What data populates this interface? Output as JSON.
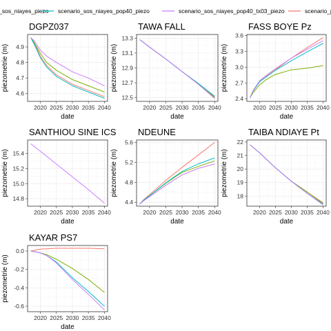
{
  "colors": {
    "scenario_piezo": "#F8766D",
    "scenario_sos_niayes_piezo": "#7CAE00",
    "scenario_sos_niayes_pop40_piezo": "#00BFC4",
    "scenario_sos_niayes_pop40_tx03_piezo": "#C77CFF"
  },
  "legend": {
    "items": [
      {
        "key": "scenario_sos_niayes_piezo",
        "label": "scenario_sos_niayes_piezo"
      },
      {
        "key": "scenario_sos_niayes_pop40_piezo",
        "label": "scenario_sos_niayes_pop40_piezo"
      },
      {
        "key": "scenario_sos_niayes_pop40_tx03_piezo",
        "label": "scenario_sos_niayes_pop40_tx03_piezo"
      },
      {
        "key": "scenario_piezo",
        "label": "scenario_piezo"
      }
    ]
  },
  "chart_data": [
    {
      "type": "line",
      "title": "DGPZ037",
      "xlabel": "date",
      "ylabel": "piezometrie (m)",
      "xlim": [
        2016,
        2041
      ],
      "ylim": [
        4.55,
        4.98
      ],
      "xticks": [
        2020,
        2025,
        2030,
        2035,
        2040
      ],
      "yticks": [
        4.6,
        4.7,
        4.8,
        4.9
      ],
      "grid": true,
      "series": [
        {
          "name": "scenario_piezo",
          "color_key": "scenario_piezo",
          "x": [
            2017,
            2018,
            2020,
            2022,
            2025,
            2030,
            2035,
            2040
          ],
          "y": [
            4.96,
            4.93,
            4.84,
            4.78,
            4.72,
            4.66,
            4.62,
            4.58
          ]
        },
        {
          "name": "scenario_sos_niayes_piezo",
          "color_key": "scenario_sos_niayes_piezo",
          "x": [
            2017,
            2018,
            2020,
            2022,
            2025,
            2030,
            2035,
            2040
          ],
          "y": [
            4.96,
            4.93,
            4.86,
            4.8,
            4.75,
            4.69,
            4.65,
            4.61
          ]
        },
        {
          "name": "scenario_sos_niayes_pop40_piezo",
          "color_key": "scenario_sos_niayes_pop40_piezo",
          "x": [
            2017,
            2018,
            2020,
            2022,
            2025,
            2030,
            2035,
            2040
          ],
          "y": [
            4.96,
            4.92,
            4.83,
            4.77,
            4.71,
            4.65,
            4.61,
            4.57
          ]
        },
        {
          "name": "scenario_sos_niayes_pop40_tx03_piezo",
          "color_key": "scenario_sos_niayes_pop40_tx03_piezo",
          "x": [
            2017,
            2018,
            2020,
            2022,
            2025,
            2030,
            2035,
            2040
          ],
          "y": [
            4.96,
            4.94,
            4.88,
            4.84,
            4.8,
            4.74,
            4.7,
            4.65
          ]
        }
      ]
    },
    {
      "type": "line",
      "title": "TAWA FALL",
      "xlabel": "date",
      "ylabel": "piezometrie (m)",
      "xlim": [
        2016,
        2041
      ],
      "ylim": [
        12.45,
        13.35
      ],
      "xticks": [
        2020,
        2025,
        2030,
        2035,
        2040
      ],
      "yticks": [
        12.5,
        12.7,
        12.9,
        13.1,
        13.3
      ],
      "grid": true,
      "series": [
        {
          "name": "scenario_piezo",
          "color_key": "scenario_piezo",
          "x": [
            2017,
            2020,
            2025,
            2030,
            2035,
            2040
          ],
          "y": [
            13.28,
            13.18,
            13.02,
            12.85,
            12.69,
            12.51
          ]
        },
        {
          "name": "scenario_sos_niayes_piezo",
          "color_key": "scenario_sos_niayes_piezo",
          "x": [
            2017,
            2020,
            2025,
            2030,
            2035,
            2040
          ],
          "y": [
            13.28,
            13.18,
            13.02,
            12.85,
            12.68,
            12.5
          ]
        },
        {
          "name": "scenario_sos_niayes_pop40_piezo",
          "color_key": "scenario_sos_niayes_pop40_piezo",
          "x": [
            2017,
            2020,
            2025,
            2030,
            2035,
            2040
          ],
          "y": [
            13.28,
            13.18,
            13.02,
            12.85,
            12.69,
            12.52
          ]
        },
        {
          "name": "scenario_sos_niayes_pop40_tx03_piezo",
          "color_key": "scenario_sos_niayes_pop40_tx03_piezo",
          "x": [
            2017,
            2020,
            2025,
            2030,
            2035,
            2040
          ],
          "y": [
            13.28,
            13.18,
            13.02,
            12.85,
            12.68,
            12.49
          ]
        }
      ]
    },
    {
      "type": "line",
      "title": "FASS BOYE Pz",
      "xlabel": "date",
      "ylabel": "piezometrie (m)",
      "xlim": [
        2016,
        2041
      ],
      "ylim": [
        2.35,
        3.62
      ],
      "xticks": [
        2020,
        2025,
        2030,
        2035,
        2040
      ],
      "yticks": [
        2.4,
        2.7,
        3.0,
        3.3,
        3.6
      ],
      "grid": true,
      "series": [
        {
          "name": "scenario_piezo",
          "color_key": "scenario_piezo",
          "x": [
            2017,
            2018,
            2020,
            2022,
            2025,
            2030,
            2035,
            2040
          ],
          "y": [
            2.42,
            2.55,
            2.72,
            2.82,
            2.95,
            3.17,
            3.37,
            3.56
          ]
        },
        {
          "name": "scenario_sos_niayes_piezo",
          "color_key": "scenario_sos_niayes_piezo",
          "x": [
            2017,
            2018,
            2020,
            2022,
            2025,
            2030,
            2035,
            2040
          ],
          "y": [
            2.42,
            2.52,
            2.66,
            2.76,
            2.86,
            2.95,
            2.98,
            3.03
          ]
        },
        {
          "name": "scenario_sos_niayes_pop40_piezo",
          "color_key": "scenario_sos_niayes_pop40_piezo",
          "x": [
            2017,
            2018,
            2020,
            2022,
            2025,
            2030,
            2035,
            2040
          ],
          "y": [
            2.42,
            2.55,
            2.72,
            2.81,
            2.94,
            3.12,
            3.29,
            3.45
          ]
        },
        {
          "name": "scenario_sos_niayes_pop40_tx03_piezo",
          "color_key": "scenario_sos_niayes_pop40_tx03_piezo",
          "x": [
            2017,
            2018,
            2020,
            2022,
            2025,
            2030,
            2035,
            2040
          ],
          "y": [
            2.42,
            2.56,
            2.74,
            2.84,
            2.97,
            3.17,
            3.34,
            3.5
          ]
        }
      ]
    },
    {
      "type": "line",
      "title": "SANTHIOU SINE ICS",
      "xlabel": "date",
      "ylabel": "piezometrie (m)",
      "xlim": [
        2016,
        2041
      ],
      "ylim": [
        14.7,
        15.58
      ],
      "xticks": [
        2020,
        2025,
        2030,
        2035,
        2040
      ],
      "yticks": [
        14.8,
        15.0,
        15.2,
        15.4
      ],
      "grid": true,
      "series": [
        {
          "name": "scenario_sos_niayes_pop40_tx03_piezo",
          "color_key": "scenario_sos_niayes_pop40_tx03_piezo",
          "x": [
            2017,
            2020,
            2025,
            2030,
            2035,
            2040
          ],
          "y": [
            15.53,
            15.43,
            15.26,
            15.09,
            14.92,
            14.74
          ]
        }
      ]
    },
    {
      "type": "line",
      "title": "NDEUNE",
      "xlabel": "date",
      "ylabel": "piezometrie (m)",
      "xlim": [
        2016,
        2041
      ],
      "ylim": [
        4.32,
        5.65
      ],
      "xticks": [
        2020,
        2025,
        2030,
        2035,
        2040
      ],
      "yticks": [
        4.4,
        4.8,
        5.2,
        5.6
      ],
      "grid": true,
      "series": [
        {
          "name": "scenario_piezo",
          "color_key": "scenario_piezo",
          "x": [
            2017,
            2018,
            2020,
            2025,
            2030,
            2035,
            2040
          ],
          "y": [
            4.36,
            4.44,
            4.55,
            4.84,
            5.1,
            5.35,
            5.6
          ]
        },
        {
          "name": "scenario_sos_niayes_piezo",
          "color_key": "scenario_sos_niayes_piezo",
          "x": [
            2017,
            2018,
            2020,
            2025,
            2030,
            2035,
            2040
          ],
          "y": [
            4.36,
            4.43,
            4.53,
            4.78,
            5.0,
            5.12,
            5.23
          ]
        },
        {
          "name": "scenario_sos_niayes_pop40_piezo",
          "color_key": "scenario_sos_niayes_pop40_piezo",
          "x": [
            2017,
            2018,
            2020,
            2025,
            2030,
            2035,
            2040
          ],
          "y": [
            4.36,
            4.43,
            4.53,
            4.79,
            5.02,
            5.17,
            5.29
          ]
        },
        {
          "name": "scenario_sos_niayes_pop40_tx03_piezo",
          "color_key": "scenario_sos_niayes_pop40_tx03_piezo",
          "x": [
            2017,
            2018,
            2020,
            2025,
            2030,
            2035,
            2040
          ],
          "y": [
            4.36,
            4.42,
            4.51,
            4.74,
            4.95,
            5.08,
            5.17
          ]
        }
      ]
    },
    {
      "type": "line",
      "title": "TAIBA NDIAYE Pt",
      "xlabel": "date",
      "ylabel": "piezometrie (m)",
      "xlim": [
        2016,
        2041
      ],
      "ylim": [
        17.25,
        22.15
      ],
      "xticks": [
        2020,
        2025,
        2030,
        2035,
        2040
      ],
      "yticks": [
        18,
        19,
        20,
        21,
        22
      ],
      "grid": true,
      "series": [
        {
          "name": "scenario_piezo",
          "color_key": "scenario_piezo",
          "x": [
            2017,
            2020,
            2025,
            2030,
            2035,
            2040
          ],
          "y": [
            21.8,
            21.2,
            20.1,
            19.1,
            18.3,
            17.5
          ]
        },
        {
          "name": "scenario_sos_niayes_piezo",
          "color_key": "scenario_sos_niayes_piezo",
          "x": [
            2017,
            2020,
            2025,
            2030,
            2035,
            2040
          ],
          "y": [
            21.8,
            21.2,
            20.1,
            19.1,
            18.3,
            17.45
          ]
        },
        {
          "name": "scenario_sos_niayes_pop40_piezo",
          "color_key": "scenario_sos_niayes_pop40_piezo",
          "x": [
            2017,
            2020,
            2025,
            2030,
            2035,
            2040
          ],
          "y": [
            21.8,
            21.2,
            20.1,
            19.1,
            18.2,
            17.4
          ]
        },
        {
          "name": "scenario_sos_niayes_pop40_tx03_piezo",
          "color_key": "scenario_sos_niayes_pop40_tx03_piezo",
          "x": [
            2017,
            2020,
            2025,
            2030,
            2035,
            2040
          ],
          "y": [
            21.8,
            21.2,
            20.1,
            19.1,
            18.2,
            17.35
          ]
        }
      ]
    },
    {
      "type": "line",
      "title": "KAYAR PS7",
      "xlabel": "date",
      "ylabel": "piezometrie (m)",
      "xlim": [
        2016,
        2041
      ],
      "ylim": [
        -0.66,
        0.06
      ],
      "xticks": [
        2020,
        2025,
        2030,
        2035,
        2040
      ],
      "yticks": [
        0.0,
        -0.2,
        -0.4,
        -0.6
      ],
      "grid": true,
      "series": [
        {
          "name": "scenario_piezo",
          "color_key": "scenario_piezo",
          "x": [
            2017,
            2020,
            2025,
            2030,
            2035,
            2040
          ],
          "y": [
            0.0,
            0.02,
            0.03,
            0.03,
            0.03,
            0.025
          ]
        },
        {
          "name": "scenario_sos_niayes_piezo",
          "color_key": "scenario_sos_niayes_piezo",
          "x": [
            2017,
            2020,
            2022,
            2025,
            2030,
            2035,
            2040
          ],
          "y": [
            0.0,
            -0.02,
            -0.04,
            -0.09,
            -0.19,
            -0.31,
            -0.45
          ]
        },
        {
          "name": "scenario_sos_niayes_pop40_piezo",
          "color_key": "scenario_sos_niayes_pop40_piezo",
          "x": [
            2017,
            2020,
            2022,
            2025,
            2030,
            2035,
            2040
          ],
          "y": [
            0.0,
            -0.02,
            -0.05,
            -0.12,
            -0.29,
            -0.44,
            -0.6
          ]
        },
        {
          "name": "scenario_sos_niayes_pop40_tx03_piezo",
          "color_key": "scenario_sos_niayes_pop40_tx03_piezo",
          "x": [
            2017,
            2020,
            2022,
            2025,
            2030,
            2035,
            2040
          ],
          "y": [
            0.0,
            -0.02,
            -0.05,
            -0.13,
            -0.31,
            -0.47,
            -0.64
          ]
        }
      ]
    }
  ]
}
